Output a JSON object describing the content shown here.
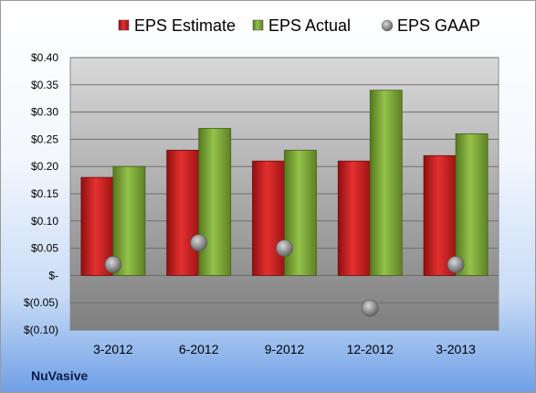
{
  "company": "NuVasive",
  "colors": {
    "estimate": "#cc1f1f",
    "actual": "#7fa83a",
    "gaap": "#9a9a9a",
    "plot_top": "#d9d9d9",
    "plot_bottom": "#7f7f7f"
  },
  "chart_data": {
    "type": "bar",
    "categories": [
      "3-2012",
      "6-2012",
      "9-2012",
      "12-2012",
      "3-2013"
    ],
    "series": [
      {
        "name": "EPS Estimate",
        "kind": "bar",
        "values": [
          0.18,
          0.23,
          0.21,
          0.21,
          0.22
        ]
      },
      {
        "name": "EPS Actual",
        "kind": "bar",
        "values": [
          0.2,
          0.27,
          0.23,
          0.34,
          0.26
        ]
      },
      {
        "name": "EPS GAAP",
        "kind": "marker",
        "values": [
          0.02,
          0.06,
          0.05,
          -0.06,
          0.02
        ]
      }
    ],
    "ylim": [
      -0.1,
      0.4
    ],
    "ytick_values": [
      0.4,
      0.35,
      0.3,
      0.25,
      0.2,
      0.15,
      0.1,
      0.05,
      0,
      -0.05,
      -0.1
    ],
    "ytick_labels": [
      "$0.40",
      "$0.35",
      "$0.30",
      "$0.25",
      "$0.20",
      "$0.15",
      "$0.10",
      "$0.05",
      "$-",
      "$(0.05)",
      "$(0.10)"
    ],
    "grid": true,
    "legend": "top"
  }
}
